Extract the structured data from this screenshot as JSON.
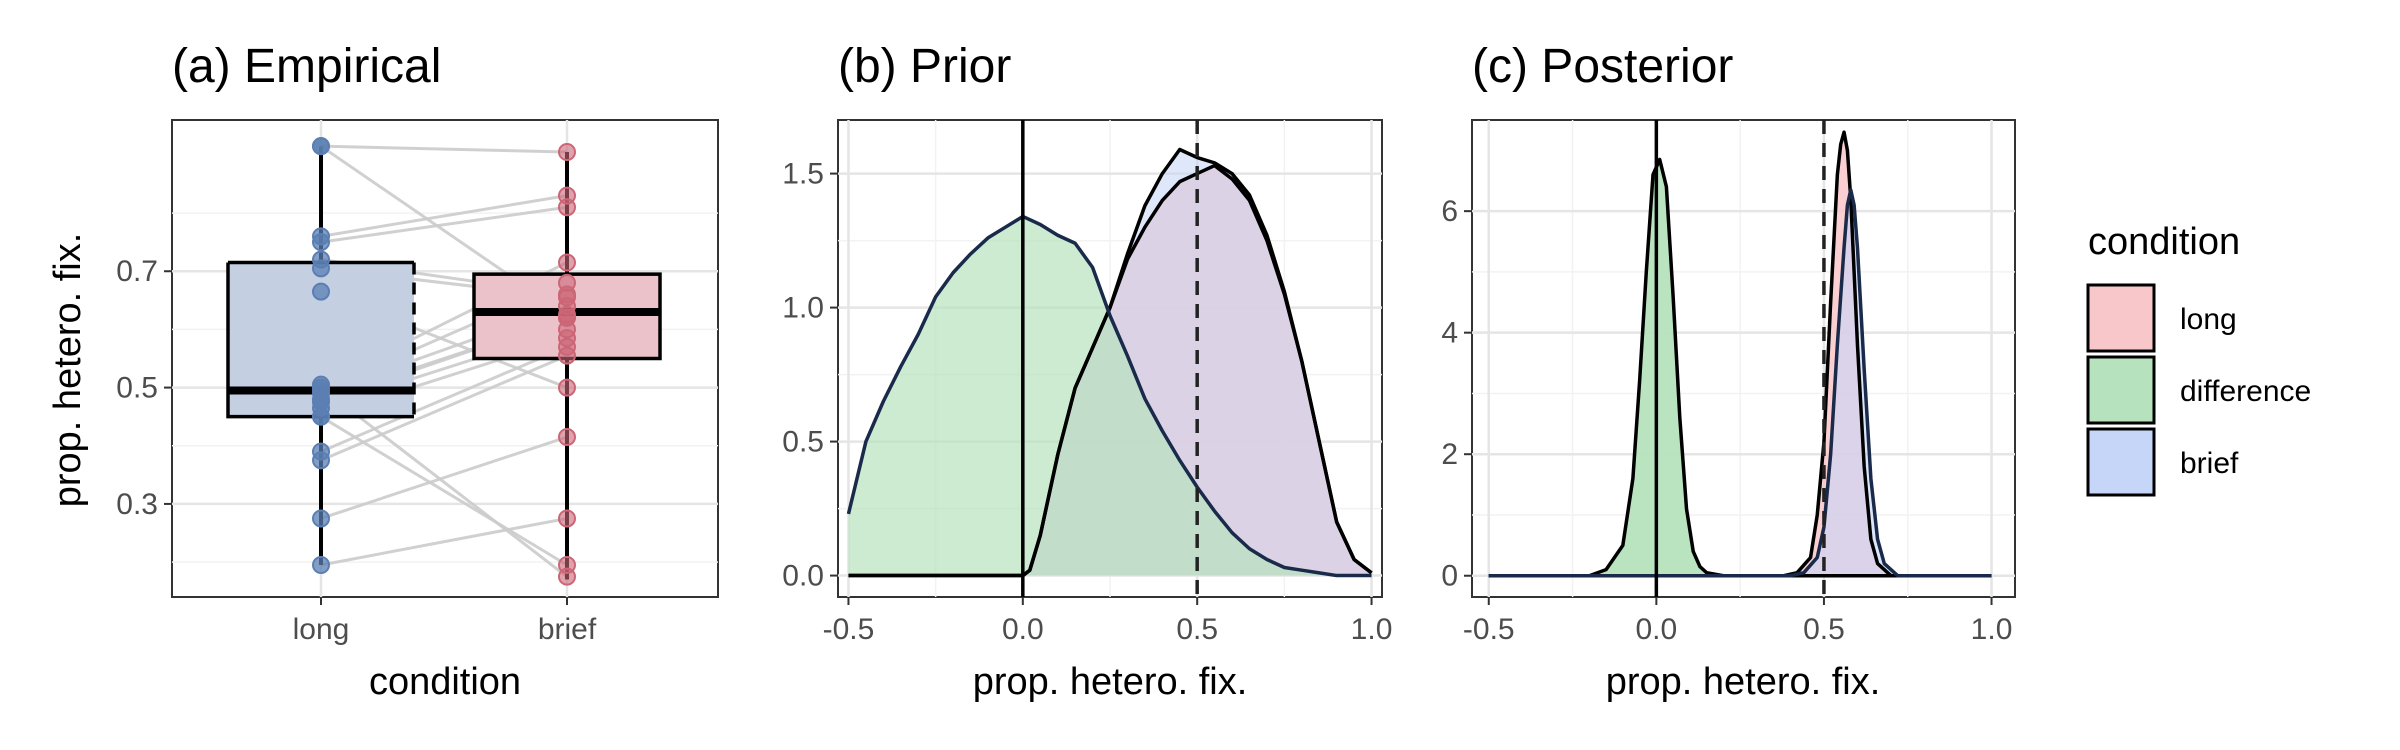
{
  "colors": {
    "long": "#f8c7c9",
    "difference": "#b6e3bd",
    "brief": "#c5d6f8",
    "box_long": "#c4d0e2",
    "box_brief": "#ecc2ca",
    "point_long": "#5b7fb3",
    "point_brief": "#cc6677",
    "overlap_brief_long": "#c4b0d8",
    "overlap_diff": "#9cb3b3",
    "grid_major": "#e5e5e5",
    "grid_minor": "#f2f2f2"
  },
  "legend": {
    "title": "condition",
    "items": [
      {
        "label": "long",
        "color": "#f8c7c9"
      },
      {
        "label": "difference",
        "color": "#b6e3bd"
      },
      {
        "label": "brief",
        "color": "#c5d6f8"
      }
    ]
  },
  "chart_data": [
    {
      "type": "boxplot",
      "title": "(a) Empirical",
      "xlabel": "condition",
      "ylabel": "prop. hetero. fix.",
      "categories": [
        "long",
        "brief"
      ],
      "ylim": [
        0.14,
        0.96
      ],
      "yticks": [
        0.3,
        0.5,
        0.7
      ],
      "ytick_labels": [
        "0.3",
        "0.5",
        "0.7"
      ],
      "boxes": [
        {
          "category": "long",
          "q1": 0.45,
          "median": 0.495,
          "q3": 0.715,
          "whisker_low": 0.195,
          "whisker_high": 0.915
        },
        {
          "category": "brief",
          "q1": 0.55,
          "median": 0.63,
          "q3": 0.695,
          "whisker_low": 0.17,
          "whisker_high": 0.905
        }
      ],
      "paired_points": [
        [
          0.915,
          0.625
        ],
        [
          0.915,
          0.905
        ],
        [
          0.76,
          0.83
        ],
        [
          0.75,
          0.81
        ],
        [
          0.72,
          0.66
        ],
        [
          0.705,
          0.655
        ],
        [
          0.665,
          0.5
        ],
        [
          0.505,
          0.715
        ],
        [
          0.495,
          0.68
        ],
        [
          0.49,
          0.64
        ],
        [
          0.48,
          0.62
        ],
        [
          0.465,
          0.6
        ],
        [
          0.45,
          0.585
        ],
        [
          0.39,
          0.57
        ],
        [
          0.375,
          0.555
        ],
        [
          0.275,
          0.415
        ],
        [
          0.195,
          0.275
        ],
        [
          0.45,
          0.195
        ],
        [
          0.5,
          0.175
        ],
        [
          0.475,
          0.62
        ]
      ]
    },
    {
      "type": "area",
      "title": "(b) Prior",
      "xlabel": "prop. hetero. fix.",
      "ylabel": "",
      "xlim": [
        -0.53,
        1.03
      ],
      "ylim": [
        -0.08,
        1.7
      ],
      "xticks": [
        -0.5,
        0.0,
        0.5,
        1.0
      ],
      "xtick_labels": [
        "-0.5",
        "0.0",
        "0.5",
        "1.0"
      ],
      "yticks": [
        0,
        0.5,
        1.0,
        1.5
      ],
      "ytick_labels": [
        "0.0",
        "0.5",
        "1.0",
        "1.5"
      ],
      "vlines": [
        {
          "x": 0,
          "style": "solid"
        },
        {
          "x": 0.5,
          "style": "dashed"
        }
      ],
      "series": [
        {
          "name": "long",
          "x": [
            -0.5,
            -0.2,
            0,
            0.02,
            0.05,
            0.1,
            0.15,
            0.2,
            0.25,
            0.3,
            0.35,
            0.4,
            0.45,
            0.5,
            0.55,
            0.6,
            0.65,
            0.7,
            0.75,
            0.8,
            0.85,
            0.9,
            0.95,
            1.0
          ],
          "y": [
            0,
            0,
            0,
            0.02,
            0.15,
            0.45,
            0.7,
            0.85,
            1.0,
            1.18,
            1.3,
            1.4,
            1.47,
            1.5,
            1.53,
            1.48,
            1.4,
            1.25,
            1.05,
            0.8,
            0.5,
            0.2,
            0.06,
            0.01
          ]
        },
        {
          "name": "brief",
          "x": [
            -0.5,
            -0.2,
            0,
            0.02,
            0.05,
            0.1,
            0.15,
            0.2,
            0.25,
            0.3,
            0.35,
            0.4,
            0.45,
            0.5,
            0.55,
            0.6,
            0.65,
            0.7,
            0.75,
            0.8,
            0.85,
            0.9,
            0.95,
            1.0
          ],
          "y": [
            0,
            0,
            0,
            0.02,
            0.15,
            0.45,
            0.7,
            0.85,
            1.0,
            1.2,
            1.38,
            1.5,
            1.59,
            1.56,
            1.54,
            1.5,
            1.42,
            1.27,
            1.06,
            0.8,
            0.5,
            0.2,
            0.06,
            0.01
          ]
        },
        {
          "name": "difference",
          "x": [
            -0.5,
            -0.45,
            -0.4,
            -0.35,
            -0.3,
            -0.25,
            -0.2,
            -0.15,
            -0.1,
            -0.05,
            0,
            0.05,
            0.1,
            0.15,
            0.2,
            0.25,
            0.3,
            0.35,
            0.4,
            0.45,
            0.5,
            0.55,
            0.6,
            0.65,
            0.7,
            0.75,
            0.8,
            0.85,
            0.9,
            0.95,
            1.0
          ],
          "y": [
            0.23,
            0.5,
            0.65,
            0.78,
            0.9,
            1.04,
            1.13,
            1.2,
            1.26,
            1.3,
            1.34,
            1.31,
            1.27,
            1.24,
            1.15,
            0.97,
            0.82,
            0.66,
            0.54,
            0.43,
            0.33,
            0.24,
            0.16,
            0.1,
            0.06,
            0.03,
            0.02,
            0.01,
            0.0,
            0.0,
            0.0
          ]
        }
      ]
    },
    {
      "type": "area",
      "title": "(c) Posterior",
      "xlabel": "prop. hetero. fix.",
      "ylabel": "",
      "xlim": [
        -0.55,
        1.07
      ],
      "ylim": [
        -0.35,
        7.5
      ],
      "xticks": [
        -0.5,
        0.0,
        0.5,
        1.0
      ],
      "xtick_labels": [
        "-0.5",
        "0.0",
        "0.5",
        "1.0"
      ],
      "yticks": [
        0,
        2,
        4,
        6
      ],
      "ytick_labels": [
        "0",
        "2",
        "4",
        "6"
      ],
      "vlines": [
        {
          "x": 0,
          "style": "solid"
        },
        {
          "x": 0.5,
          "style": "dashed"
        }
      ],
      "series": [
        {
          "name": "difference",
          "x": [
            -0.5,
            -0.2,
            -0.15,
            -0.1,
            -0.07,
            -0.05,
            -0.03,
            -0.01,
            0.01,
            0.03,
            0.05,
            0.07,
            0.09,
            0.11,
            0.13,
            0.15,
            0.2,
            1.0
          ],
          "y": [
            0,
            0,
            0.1,
            0.5,
            1.6,
            3.2,
            5.0,
            6.6,
            6.85,
            6.4,
            4.6,
            2.6,
            1.1,
            0.4,
            0.15,
            0.05,
            0,
            0
          ]
        },
        {
          "name": "long",
          "x": [
            -0.5,
            0.38,
            0.42,
            0.46,
            0.48,
            0.5,
            0.52,
            0.54,
            0.55,
            0.56,
            0.57,
            0.58,
            0.6,
            0.62,
            0.64,
            0.66,
            0.7,
            1.0
          ],
          "y": [
            0,
            0,
            0.05,
            0.3,
            1.0,
            2.2,
            4.5,
            6.6,
            7.1,
            7.3,
            7.0,
            6.2,
            3.8,
            1.8,
            0.6,
            0.2,
            0,
            0
          ]
        },
        {
          "name": "brief",
          "x": [
            -0.5,
            0.4,
            0.44,
            0.48,
            0.5,
            0.52,
            0.54,
            0.56,
            0.57,
            0.58,
            0.59,
            0.6,
            0.62,
            0.64,
            0.66,
            0.68,
            0.72,
            1.0
          ],
          "y": [
            0,
            0,
            0.05,
            0.3,
            0.8,
            2.0,
            3.8,
            5.4,
            6.1,
            6.35,
            6.1,
            5.4,
            3.4,
            1.6,
            0.6,
            0.2,
            0,
            0
          ]
        }
      ]
    }
  ]
}
